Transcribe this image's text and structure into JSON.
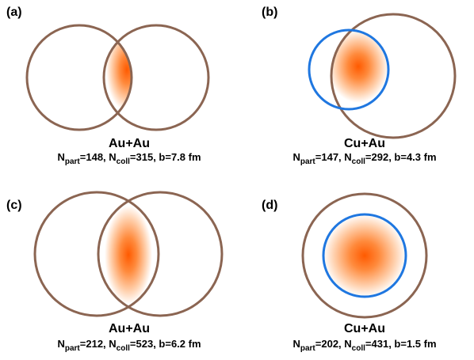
{
  "panels": [
    {
      "label": "(a)",
      "system": "Au+Au",
      "caption": [
        {
          "text": "N",
          "sub": "part"
        },
        {
          "text": "=148, N",
          "sub": "coll"
        },
        {
          "text": "=315, b=7.8 fm"
        }
      ]
    },
    {
      "label": "(b)",
      "system": "Cu+Au",
      "caption": [
        {
          "text": "N",
          "sub": "part"
        },
        {
          "text": "=147, N",
          "sub": "coll"
        },
        {
          "text": "=292, b=4.3 fm"
        }
      ]
    },
    {
      "label": "(c)",
      "system": "Au+Au",
      "caption": [
        {
          "text": "N",
          "sub": "part"
        },
        {
          "text": "=212, N",
          "sub": "coll"
        },
        {
          "text": "=523, b=6.2 fm"
        }
      ]
    },
    {
      "label": "(d)",
      "system": "Cu+Au",
      "caption": [
        {
          "text": "N",
          "sub": "part"
        },
        {
          "text": "=202, N",
          "sub": "coll"
        },
        {
          "text": "=431, b=1.5 fm"
        }
      ]
    }
  ]
}
